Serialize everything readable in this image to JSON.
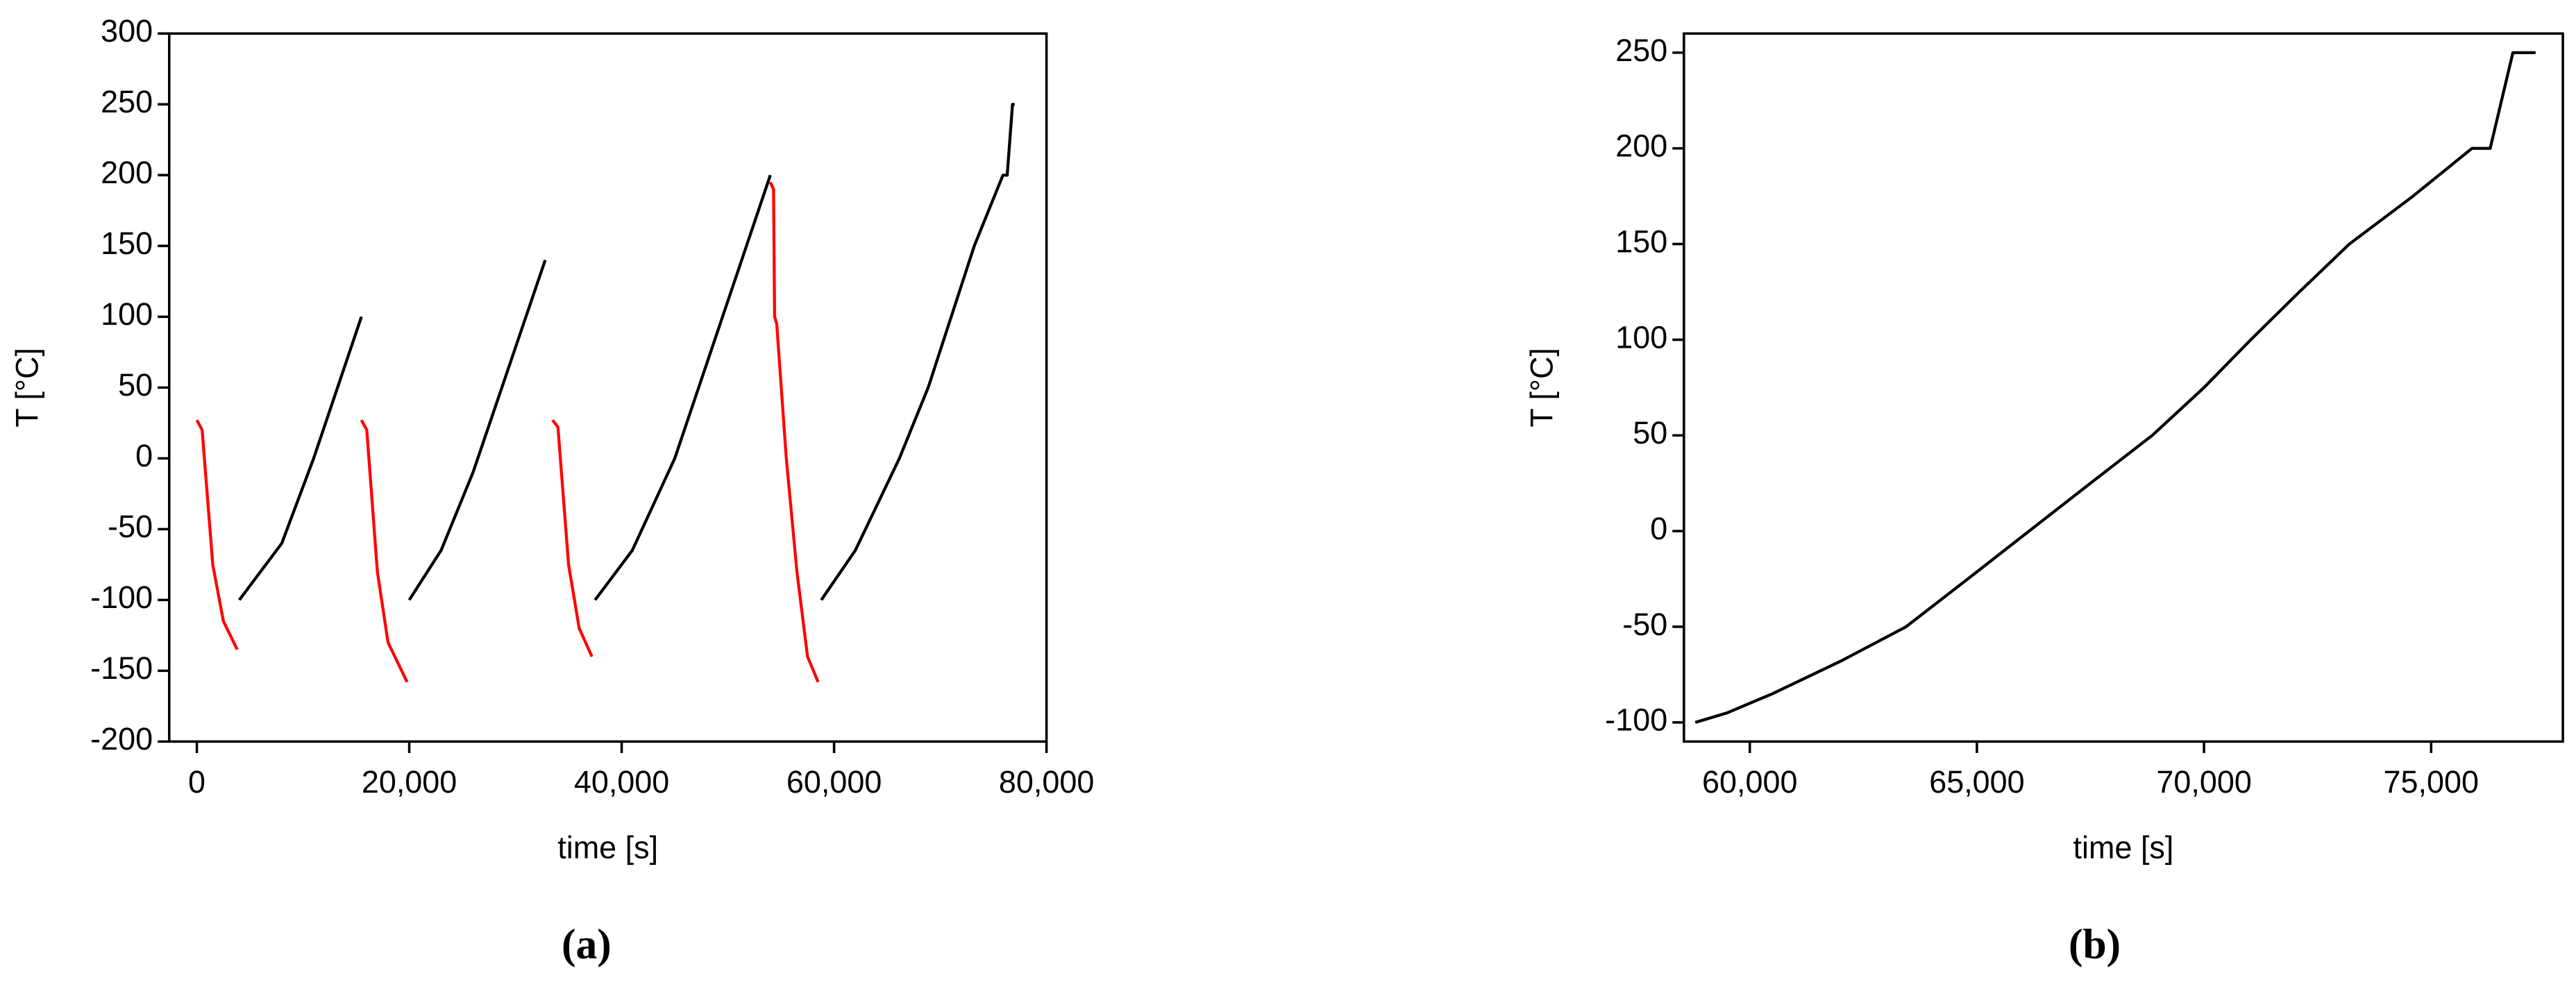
{
  "chart_data": [
    {
      "type": "line",
      "label": "(a)",
      "xlabel": "time [s]",
      "ylabel": "T [°C]",
      "xlim": [
        -2600,
        80000
      ],
      "ylim": [
        -200,
        300
      ],
      "xticks": [
        0,
        {
          "value": 20000,
          "label": "20,000"
        },
        {
          "value": 40000,
          "label": "40,000"
        },
        {
          "value": 60000,
          "label": "60,000"
        },
        {
          "value": 80000,
          "label": "80,000"
        }
      ],
      "yticks": [
        -200,
        -150,
        -100,
        -50,
        0,
        50,
        100,
        150,
        200,
        250,
        300
      ],
      "series": [
        {
          "color": "#ff0000",
          "x": [
            0,
            500,
            1500,
            2500,
            3800
          ],
          "values": [
            27,
            20,
            -75,
            -115,
            -135
          ]
        },
        {
          "color": "#000000",
          "x": [
            4000,
            8000,
            11000,
            15500
          ],
          "values": [
            -100,
            -60,
            0,
            100
          ]
        },
        {
          "color": "#ff0000",
          "x": [
            15500,
            16000,
            17000,
            18000,
            19800
          ],
          "values": [
            27,
            20,
            -80,
            -130,
            -158
          ]
        },
        {
          "color": "#000000",
          "x": [
            20000,
            23000,
            26000,
            32800
          ],
          "values": [
            -100,
            -65,
            -10,
            140
          ]
        },
        {
          "color": "#ff0000",
          "x": [
            33500,
            34000,
            35000,
            36000,
            37200
          ],
          "values": [
            27,
            22,
            -75,
            -120,
            -140
          ]
        },
        {
          "color": "#000000",
          "x": [
            37500,
            41000,
            45000,
            54000
          ],
          "values": [
            -100,
            -65,
            0,
            200
          ]
        },
        {
          "color": "#ff0000",
          "x": [
            54000,
            54300,
            54400,
            54600,
            55500,
            56500,
            57500,
            58500
          ],
          "values": [
            195,
            190,
            100,
            95,
            0,
            -80,
            -140,
            -158
          ]
        },
        {
          "color": "#000000",
          "x": [
            58800,
            62000,
            66150,
            68860,
            71030,
            73200,
            75900,
            76300,
            76800,
            77000
          ],
          "values": [
            -100,
            -65,
            0,
            50,
            100,
            150,
            200,
            200,
            250,
            250
          ]
        }
      ]
    },
    {
      "type": "line",
      "label": "(b)",
      "xlabel": "time [s]",
      "ylabel": "T [°C]",
      "xlim": [
        58550,
        77900
      ],
      "ylim": [
        -110,
        260
      ],
      "xticks": [
        {
          "value": 60000,
          "label": "60,000"
        },
        {
          "value": 65000,
          "label": "65,000"
        },
        {
          "value": 70000,
          "label": "70,000"
        },
        {
          "value": 75000,
          "label": "75,000"
        }
      ],
      "yticks": [
        -100,
        -50,
        0,
        50,
        100,
        150,
        200,
        250
      ],
      "series": [
        {
          "color": "#000000",
          "x": [
            58800,
            59500,
            60500,
            62000,
            63440,
            64800,
            66150,
            67500,
            68860,
            70000,
            71030,
            72100,
            73200,
            74600,
            75900,
            76300,
            76800,
            77300
          ],
          "values": [
            -100,
            -95,
            -85,
            -68,
            -50,
            -25,
            0,
            25,
            50,
            75,
            100,
            125,
            150,
            175,
            200,
            200,
            250,
            250
          ]
        }
      ]
    }
  ]
}
